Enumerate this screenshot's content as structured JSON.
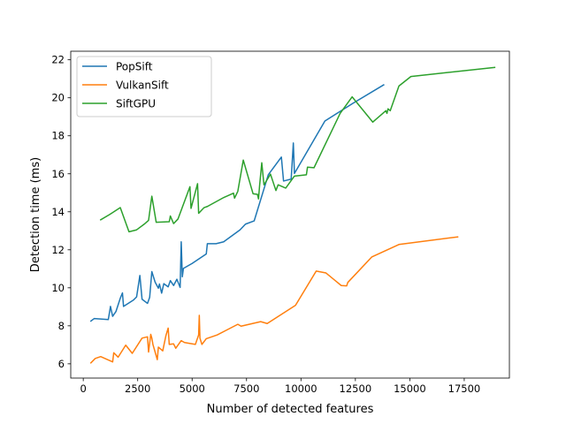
{
  "chart_data": {
    "type": "line",
    "title": "",
    "xlabel": "Number of detected features",
    "ylabel": "Detection time (ms)",
    "xlim": [
      -575,
      19575
    ],
    "ylim": [
      5.25,
      22.45
    ],
    "xticks": [
      0,
      2500,
      5000,
      7500,
      10000,
      12500,
      15000,
      17500
    ],
    "xtick_labels": [
      "0",
      "2500",
      "5000",
      "7500",
      "10000",
      "12500",
      "15000",
      "17500"
    ],
    "yticks": [
      6,
      8,
      10,
      12,
      14,
      16,
      18,
      20,
      22
    ],
    "ytick_labels": [
      "6",
      "8",
      "10",
      "12",
      "14",
      "16",
      "18",
      "20",
      "22"
    ],
    "grid": false,
    "legend_position": "top-left",
    "series": [
      {
        "name": "PopSift",
        "color": "#1f77b4",
        "points": [
          [
            350,
            8.25
          ],
          [
            500,
            8.38
          ],
          [
            1150,
            8.33
          ],
          [
            1250,
            9.02
          ],
          [
            1350,
            8.5
          ],
          [
            1500,
            8.75
          ],
          [
            1700,
            9.45
          ],
          [
            1800,
            9.73
          ],
          [
            1850,
            9.02
          ],
          [
            2300,
            9.35
          ],
          [
            2450,
            9.52
          ],
          [
            2600,
            10.65
          ],
          [
            2700,
            9.4
          ],
          [
            2950,
            9.18
          ],
          [
            3050,
            9.5
          ],
          [
            3150,
            10.85
          ],
          [
            3300,
            10.3
          ],
          [
            3450,
            9.98
          ],
          [
            3500,
            10.2
          ],
          [
            3600,
            9.72
          ],
          [
            3700,
            10.22
          ],
          [
            3900,
            10.05
          ],
          [
            4000,
            10.38
          ],
          [
            4150,
            10.12
          ],
          [
            4300,
            10.45
          ],
          [
            4450,
            10.02
          ],
          [
            4500,
            12.42
          ],
          [
            4550,
            10.58
          ],
          [
            4600,
            11.02
          ],
          [
            5000,
            11.28
          ],
          [
            5650,
            11.78
          ],
          [
            5700,
            12.32
          ],
          [
            6100,
            12.32
          ],
          [
            6450,
            12.42
          ],
          [
            7200,
            13.05
          ],
          [
            7450,
            13.35
          ],
          [
            7850,
            13.52
          ],
          [
            8500,
            15.95
          ],
          [
            9100,
            16.88
          ],
          [
            9200,
            15.62
          ],
          [
            9550,
            15.72
          ],
          [
            9650,
            17.62
          ],
          [
            9700,
            16.02
          ],
          [
            11100,
            18.78
          ],
          [
            12400,
            19.72
          ],
          [
            13800,
            20.68
          ]
        ]
      },
      {
        "name": "VulkanSift",
        "color": "#ff7f0e",
        "points": [
          [
            350,
            6.05
          ],
          [
            550,
            6.28
          ],
          [
            800,
            6.38
          ],
          [
            1350,
            6.1
          ],
          [
            1400,
            6.58
          ],
          [
            1600,
            6.35
          ],
          [
            1950,
            6.98
          ],
          [
            2250,
            6.55
          ],
          [
            2700,
            7.35
          ],
          [
            2950,
            7.42
          ],
          [
            3000,
            6.62
          ],
          [
            3100,
            7.55
          ],
          [
            3150,
            7.35
          ],
          [
            3200,
            7.02
          ],
          [
            3400,
            6.22
          ],
          [
            3450,
            6.88
          ],
          [
            3650,
            6.68
          ],
          [
            3800,
            7.5
          ],
          [
            3900,
            7.88
          ],
          [
            3950,
            7.02
          ],
          [
            4150,
            7.05
          ],
          [
            4250,
            6.82
          ],
          [
            4500,
            7.22
          ],
          [
            4650,
            7.12
          ],
          [
            5150,
            7.02
          ],
          [
            5300,
            7.52
          ],
          [
            5330,
            8.55
          ],
          [
            5360,
            7.35
          ],
          [
            5450,
            7.02
          ],
          [
            5650,
            7.32
          ],
          [
            6150,
            7.52
          ],
          [
            7100,
            8.08
          ],
          [
            7250,
            7.98
          ],
          [
            8150,
            8.22
          ],
          [
            8450,
            8.12
          ],
          [
            9750,
            9.08
          ],
          [
            10700,
            10.88
          ],
          [
            11150,
            10.78
          ],
          [
            11850,
            10.12
          ],
          [
            12100,
            10.1
          ],
          [
            12150,
            10.28
          ],
          [
            13250,
            11.62
          ],
          [
            14500,
            12.28
          ],
          [
            17200,
            12.68
          ]
        ]
      },
      {
        "name": "SiftGPU",
        "color": "#2ca02c",
        "points": [
          [
            800,
            13.58
          ],
          [
            1200,
            13.85
          ],
          [
            1700,
            14.22
          ],
          [
            2100,
            12.95
          ],
          [
            2450,
            13.05
          ],
          [
            2800,
            13.35
          ],
          [
            3000,
            13.55
          ],
          [
            3150,
            14.82
          ],
          [
            3350,
            13.45
          ],
          [
            3950,
            13.48
          ],
          [
            4000,
            13.78
          ],
          [
            4150,
            13.38
          ],
          [
            4350,
            13.62
          ],
          [
            4900,
            15.32
          ],
          [
            4950,
            14.18
          ],
          [
            5250,
            15.48
          ],
          [
            5300,
            13.92
          ],
          [
            5550,
            14.22
          ],
          [
            5700,
            14.28
          ],
          [
            6450,
            14.75
          ],
          [
            6900,
            14.98
          ],
          [
            6950,
            14.72
          ],
          [
            7100,
            15.08
          ],
          [
            7350,
            16.72
          ],
          [
            7800,
            14.95
          ],
          [
            8000,
            14.92
          ],
          [
            8050,
            14.68
          ],
          [
            8100,
            15.38
          ],
          [
            8200,
            16.58
          ],
          [
            8300,
            15.42
          ],
          [
            8600,
            15.98
          ],
          [
            8850,
            15.12
          ],
          [
            8950,
            15.42
          ],
          [
            9300,
            15.25
          ],
          [
            9700,
            15.88
          ],
          [
            10250,
            15.95
          ],
          [
            10300,
            16.35
          ],
          [
            10600,
            16.32
          ],
          [
            11800,
            19.18
          ],
          [
            12350,
            20.05
          ],
          [
            13300,
            18.72
          ],
          [
            13900,
            19.32
          ],
          [
            13950,
            19.18
          ],
          [
            14000,
            19.42
          ],
          [
            14100,
            19.32
          ],
          [
            14500,
            20.62
          ],
          [
            15050,
            21.12
          ],
          [
            18900,
            21.6
          ]
        ]
      }
    ]
  }
}
